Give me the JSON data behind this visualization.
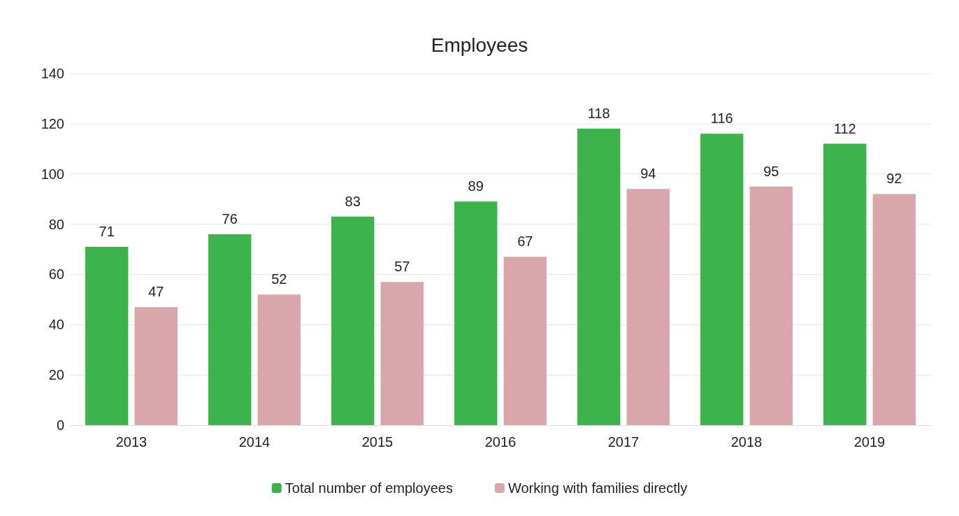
{
  "chart_data": {
    "type": "bar",
    "title": "Employees",
    "categories": [
      "2013",
      "2014",
      "2015",
      "2016",
      "2017",
      "2018",
      "2019"
    ],
    "series": [
      {
        "name": "Total number of employees",
        "color": "#3cb44b",
        "values": [
          71,
          76,
          83,
          89,
          118,
          116,
          112
        ]
      },
      {
        "name": "Working with families directly",
        "color": "#d9a7ab",
        "values": [
          47,
          52,
          57,
          67,
          94,
          95,
          92
        ]
      }
    ],
    "ylim": [
      0,
      140
    ],
    "yticks": [
      0,
      20,
      40,
      60,
      80,
      100,
      120,
      140
    ],
    "grid": "y",
    "legend": "bottom",
    "data_labels": true
  }
}
